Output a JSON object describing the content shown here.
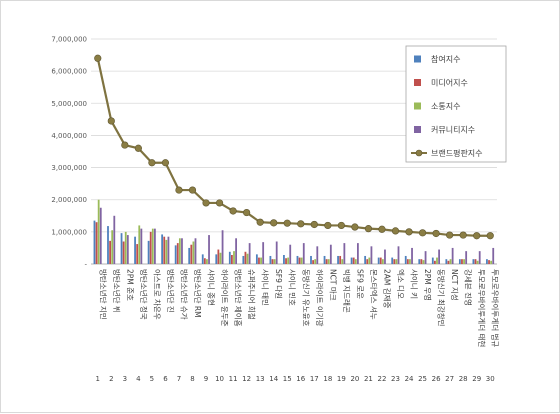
{
  "chart_data": {
    "type": "bar",
    "title": "",
    "xlabel": "",
    "ylabel": "",
    "ylim": [
      0,
      7000000
    ],
    "yticks": [
      0,
      1000000,
      2000000,
      3000000,
      4000000,
      5000000,
      6000000,
      7000000
    ],
    "ytick_labels": [
      "-",
      "1,000,000",
      "2,000,000",
      "3,000,000",
      "4,000,000",
      "5,000,000",
      "6,000,000",
      "7,000,000"
    ],
    "grid": true,
    "legend_position": "top-right",
    "ranks": [
      "1",
      "2",
      "3",
      "4",
      "5",
      "6",
      "7",
      "8",
      "9",
      "10",
      "11",
      "12",
      "13",
      "14",
      "15",
      "16",
      "17",
      "18",
      "19",
      "20",
      "21",
      "22",
      "23",
      "24",
      "25",
      "26",
      "27",
      "28",
      "29",
      "30"
    ],
    "categories": [
      "방탄소년단 지민",
      "방탄소년단 뷔",
      "2PM 준호",
      "방탄소년단 정국",
      "아스트로 차은우",
      "방탄소년단 진",
      "방탄소년단 슈가",
      "방탄소년단 RM",
      "샤이니 종현",
      "하이라이트 윤두준",
      "방탄소년단 제이홉",
      "슈퍼주니어 희철",
      "샤이니 태민",
      "SF9 다원",
      "샤이니 민호",
      "동방신기 유노윤호",
      "하이라이트 이기광",
      "NCT 마크",
      "빅뱅 지드래곤",
      "SF9 로운",
      "몬스타엑스 셔누",
      "2AM 김재중",
      "엑소 디오",
      "샤이니 키",
      "2PM 우영",
      "동방신기 최강창민",
      "NCT 지성",
      "강세븐 진영",
      "투모로우바이투게더 태현",
      "투모로우바이투게더 범규"
    ],
    "series": [
      {
        "name": "참여지수",
        "color": "#4f81bd",
        "kind": "bar",
        "values": [
          1350000,
          1180000,
          960000,
          850000,
          720000,
          920000,
          580000,
          500000,
          300000,
          300000,
          380000,
          250000,
          300000,
          250000,
          280000,
          250000,
          250000,
          250000,
          250000,
          200000,
          250000,
          200000,
          200000,
          250000,
          150000,
          200000,
          150000,
          150000,
          150000,
          150000
        ]
      },
      {
        "name": "미디어지수",
        "color": "#c0504d",
        "kind": "bar",
        "values": [
          1300000,
          720000,
          700000,
          620000,
          1000000,
          850000,
          650000,
          600000,
          180000,
          450000,
          280000,
          380000,
          200000,
          150000,
          180000,
          200000,
          120000,
          150000,
          250000,
          200000,
          150000,
          200000,
          150000,
          150000,
          150000,
          100000,
          100000,
          150000,
          150000,
          120000
        ]
      },
      {
        "name": "소통지수",
        "color": "#9bbb59",
        "kind": "bar",
        "values": [
          2000000,
          1050000,
          1000000,
          1200000,
          1100000,
          750000,
          800000,
          700000,
          150000,
          350000,
          400000,
          320000,
          200000,
          150000,
          200000,
          200000,
          150000,
          150000,
          150000,
          150000,
          200000,
          150000,
          150000,
          150000,
          120000,
          200000,
          150000,
          150000,
          100000,
          100000
        ]
      },
      {
        "name": "커뮤니티지수",
        "color": "#8064a2",
        "kind": "bar",
        "values": [
          1750000,
          1500000,
          900000,
          1100000,
          1100000,
          850000,
          800000,
          800000,
          900000,
          1050000,
          800000,
          650000,
          680000,
          700000,
          600000,
          650000,
          550000,
          600000,
          650000,
          650000,
          550000,
          450000,
          550000,
          500000,
          400000,
          450000,
          500000,
          400000,
          400000,
          500000
        ]
      },
      {
        "name": "브랜드평판지수",
        "color": "#7f7340",
        "kind": "line",
        "values": [
          6400000,
          4450000,
          3700000,
          3600000,
          3150000,
          3150000,
          2300000,
          2300000,
          1900000,
          1900000,
          1650000,
          1600000,
          1300000,
          1280000,
          1270000,
          1250000,
          1230000,
          1200000,
          1200000,
          1150000,
          1100000,
          1080000,
          1030000,
          1000000,
          970000,
          950000,
          900000,
          900000,
          880000,
          880000
        ]
      }
    ]
  }
}
